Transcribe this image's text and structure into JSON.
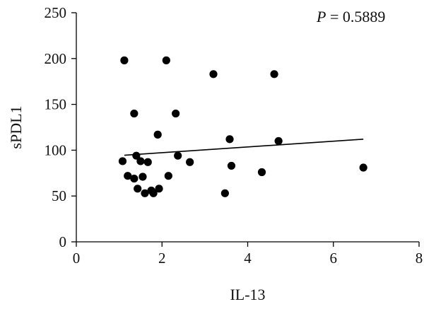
{
  "chart_data": {
    "type": "scatter",
    "xlabel": "IL-13",
    "ylabel": "sPDL1",
    "xlim": [
      0,
      8
    ],
    "ylim": [
      0,
      250
    ],
    "xticks": [
      0,
      2,
      4,
      6,
      8
    ],
    "yticks": [
      0,
      50,
      100,
      150,
      200,
      250
    ],
    "grid": false,
    "annotation": {
      "label": "P",
      "text": " = 0.5889"
    },
    "points": [
      {
        "x": 1.12,
        "y": 198
      },
      {
        "x": 2.1,
        "y": 198
      },
      {
        "x": 3.2,
        "y": 183
      },
      {
        "x": 4.62,
        "y": 183
      },
      {
        "x": 1.35,
        "y": 140
      },
      {
        "x": 2.32,
        "y": 140
      },
      {
        "x": 1.9,
        "y": 117
      },
      {
        "x": 3.58,
        "y": 112
      },
      {
        "x": 4.72,
        "y": 110
      },
      {
        "x": 2.37,
        "y": 94
      },
      {
        "x": 1.4,
        "y": 94
      },
      {
        "x": 1.08,
        "y": 88
      },
      {
        "x": 1.5,
        "y": 88
      },
      {
        "x": 1.67,
        "y": 87
      },
      {
        "x": 2.65,
        "y": 87
      },
      {
        "x": 3.62,
        "y": 83
      },
      {
        "x": 6.7,
        "y": 81
      },
      {
        "x": 4.33,
        "y": 76
      },
      {
        "x": 1.2,
        "y": 72
      },
      {
        "x": 2.15,
        "y": 72
      },
      {
        "x": 1.55,
        "y": 71
      },
      {
        "x": 1.35,
        "y": 69
      },
      {
        "x": 1.43,
        "y": 58
      },
      {
        "x": 1.93,
        "y": 58
      },
      {
        "x": 1.75,
        "y": 56
      },
      {
        "x": 1.6,
        "y": 53
      },
      {
        "x": 1.8,
        "y": 53
      },
      {
        "x": 3.47,
        "y": 53
      }
    ],
    "trendline": {
      "x": [
        1.12,
        6.7
      ],
      "y": [
        94.5,
        112
      ]
    }
  }
}
